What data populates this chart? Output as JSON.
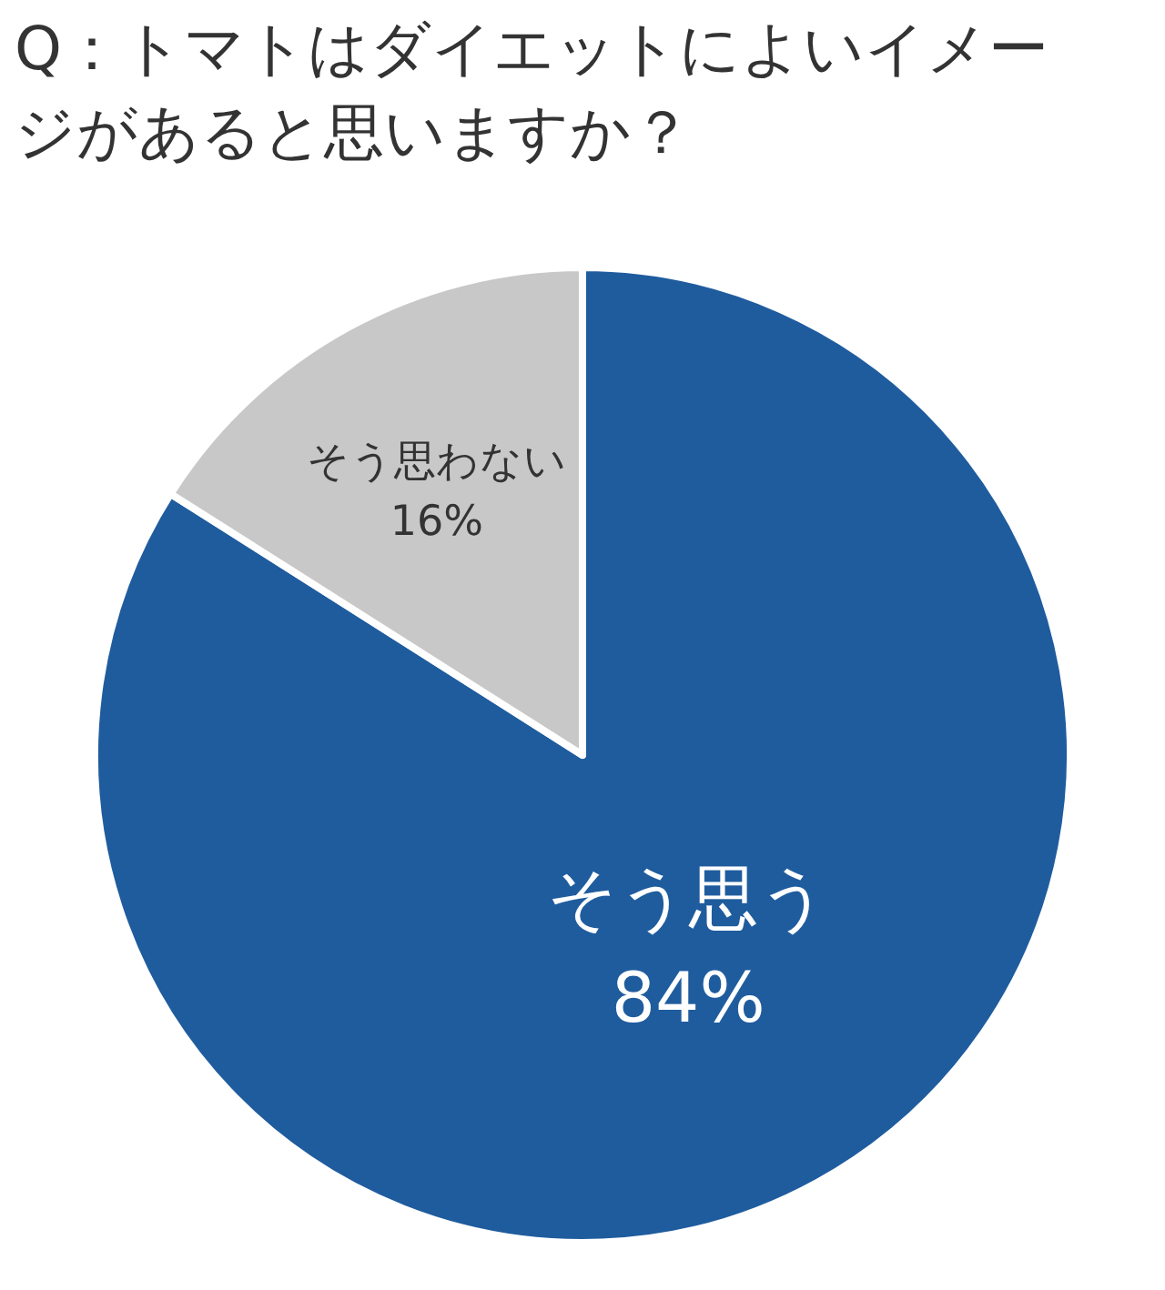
{
  "chart_data": {
    "type": "pie",
    "title": "Q：トマトはダイエットによいイメージがあると思いますか？",
    "categories": [
      "そう思う",
      "そう思わない"
    ],
    "values": [
      84,
      16
    ],
    "value_labels": [
      "84%",
      "16%"
    ],
    "colors": [
      "#1f5c9e",
      "#c8c8c8"
    ],
    "legend": false
  }
}
